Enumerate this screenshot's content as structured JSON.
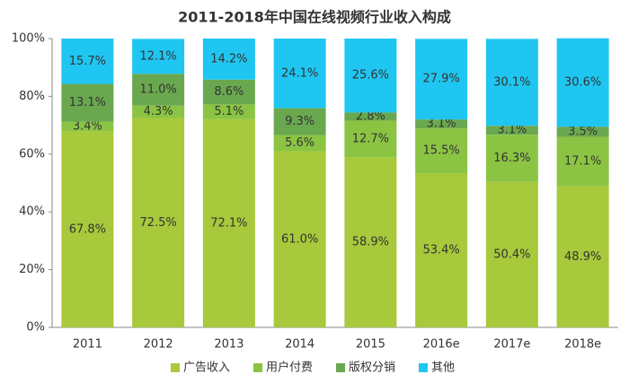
{
  "chart_data": {
    "type": "stacked_bar",
    "title": "2011-2018年中国在线视频行业收入构成",
    "categories": [
      "2011",
      "2012",
      "2013",
      "2014",
      "2015",
      "2016e",
      "2017e",
      "2018e"
    ],
    "series": [
      {
        "name": "广告收入",
        "color": "#a7c93b",
        "values": [
          67.8,
          72.5,
          72.1,
          61.0,
          58.9,
          53.4,
          50.4,
          48.9
        ],
        "value_labels": [
          "67.8%",
          "72.5%",
          "72.1%",
          "61.0%",
          "58.9%",
          "53.4%",
          "50.4%",
          "48.9%"
        ]
      },
      {
        "name": "用户付费",
        "color": "#8bc443",
        "values": [
          3.4,
          4.3,
          5.1,
          5.6,
          12.7,
          15.5,
          16.3,
          17.1
        ],
        "value_labels": [
          "3.4%",
          "4.3%",
          "5.1%",
          "5.6%",
          "12.7%",
          "15.5%",
          "16.3%",
          "17.1%"
        ]
      },
      {
        "name": "版权分销",
        "color": "#6aa84f",
        "values": [
          13.1,
          11.0,
          8.6,
          9.3,
          2.8,
          3.1,
          3.1,
          3.5
        ],
        "value_labels": [
          "13.1%",
          "11.0%",
          "8.6%",
          "9.3%",
          "2.8%",
          "3.1%",
          "3.1%",
          "3.5%"
        ]
      },
      {
        "name": "其他",
        "color": "#1fc6f1",
        "values": [
          15.7,
          12.1,
          14.2,
          24.1,
          25.6,
          27.9,
          30.1,
          30.6
        ],
        "value_labels": [
          "15.7%",
          "12.1%",
          "14.2%",
          "24.1%",
          "25.6%",
          "27.9%",
          "30.1%",
          "30.6%"
        ]
      }
    ],
    "ylim": [
      0,
      100
    ],
    "yticks": [
      {
        "value": 0,
        "label": "0%"
      },
      {
        "value": 20,
        "label": "20%"
      },
      {
        "value": 40,
        "label": "40%"
      },
      {
        "value": 60,
        "label": "60%"
      },
      {
        "value": 80,
        "label": "80%"
      },
      {
        "value": 100,
        "label": "100%"
      }
    ],
    "grid": false,
    "legend": "bottom"
  }
}
